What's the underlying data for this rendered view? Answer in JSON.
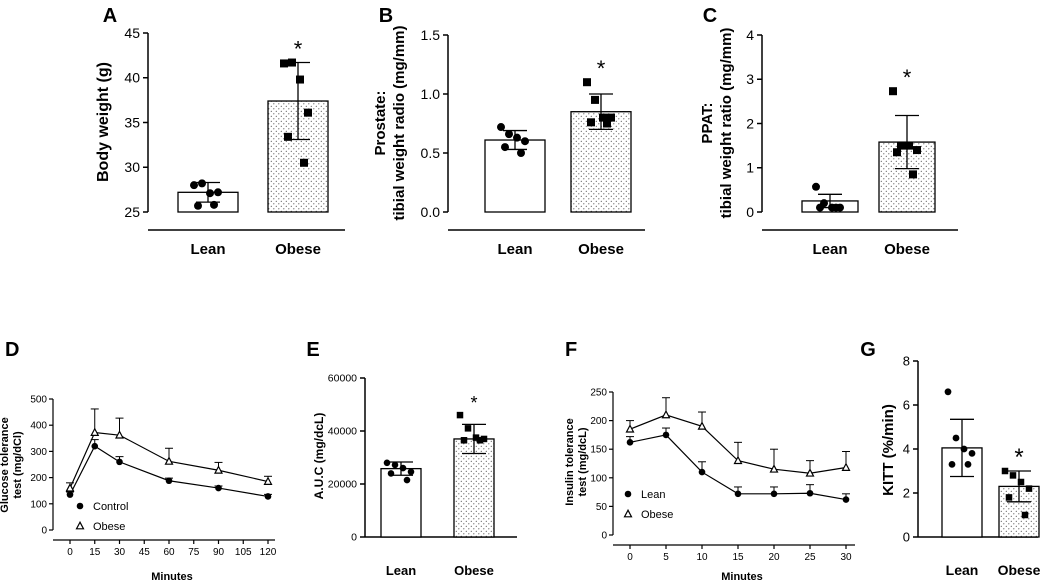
{
  "figure": {
    "colors": {
      "ink": "#000000",
      "bar_fill": "#ffffff",
      "stipple": "#555555"
    }
  },
  "chart_data": [
    {
      "panel": "A",
      "type": "bar",
      "title": "",
      "xlabel": "",
      "ylabel": "Body weight (g)",
      "ylim": [
        25,
        45
      ],
      "yticks": [
        25,
        30,
        35,
        40,
        45
      ],
      "ytick_labels": [
        "25",
        "30",
        "35",
        "40",
        "45"
      ],
      "categories": [
        "Lean",
        "Obese"
      ],
      "values": [
        27.2,
        37.4
      ],
      "errors": [
        1.1,
        4.3
      ],
      "points": [
        [
          28.0,
          28.2,
          27.1,
          27.2,
          25.7,
          25.8
        ],
        [
          41.6,
          41.7,
          39.8,
          36.1,
          33.4,
          30.5
        ]
      ],
      "significance": [
        "",
        "*"
      ]
    },
    {
      "panel": "B",
      "type": "bar",
      "title": "",
      "xlabel": "",
      "ylabel": "Prostate:",
      "ylabel2": "tibial weight radio (mg/mm)",
      "ylim": [
        0,
        1.5
      ],
      "yticks": [
        0,
        0.5,
        1.0,
        1.5
      ],
      "ytick_labels": [
        "0.0",
        "0.5",
        "1.0",
        "1.5"
      ],
      "categories": [
        "Lean",
        "Obese"
      ],
      "values": [
        0.61,
        0.85
      ],
      "errors": [
        0.08,
        0.15
      ],
      "points": [
        [
          0.72,
          0.66,
          0.63,
          0.6,
          0.55,
          0.5
        ],
        [
          1.1,
          0.95,
          0.8,
          0.8,
          0.76,
          0.75
        ]
      ],
      "significance": [
        "",
        "*"
      ]
    },
    {
      "panel": "C",
      "type": "bar",
      "title": "",
      "xlabel": "",
      "ylabel": "PPAT:",
      "ylabel2": "tibial weight ratio (mg/mm)",
      "ylim": [
        0,
        4
      ],
      "yticks": [
        0,
        1,
        2,
        3,
        4
      ],
      "ytick_labels": [
        "0",
        "1",
        "2",
        "3",
        "4"
      ],
      "categories": [
        "Lean",
        "Obese"
      ],
      "values": [
        0.25,
        1.58
      ],
      "errors": [
        0.15,
        0.6
      ],
      "points": [
        [
          0.57,
          0.2,
          0.1,
          0.1,
          0.1,
          0.1
        ],
        [
          2.73,
          1.5,
          1.5,
          1.4,
          1.35,
          0.85
        ]
      ],
      "significance": [
        "",
        "*"
      ]
    },
    {
      "panel": "D",
      "type": "line",
      "title": "",
      "xlabel": "Minutes",
      "ylabel": "Glucose tolerance",
      "ylabel2": "test (mg/dCl)",
      "xlim": [
        0,
        120
      ],
      "ylim": [
        0,
        500
      ],
      "xticks": [
        0,
        15,
        30,
        45,
        60,
        75,
        90,
        105,
        120
      ],
      "xtick_labels": [
        "0",
        "15",
        "30",
        "45",
        "60",
        "75",
        "90",
        "105",
        "120"
      ],
      "yticks": [
        0,
        100,
        200,
        300,
        400,
        500
      ],
      "ytick_labels": [
        "0",
        "100",
        "200",
        "300",
        "400",
        "500"
      ],
      "series": [
        {
          "name": "Control",
          "marker": "circle",
          "x": [
            0,
            15,
            30,
            60,
            90,
            120
          ],
          "y": [
            135,
            320,
            260,
            188,
            160,
            128
          ],
          "err": [
            10,
            25,
            20,
            10,
            8,
            8
          ]
        },
        {
          "name": "Obese",
          "marker": "triangle",
          "x": [
            0,
            15,
            30,
            60,
            90,
            120
          ],
          "y": [
            160,
            372,
            362,
            262,
            228,
            185
          ],
          "err": [
            20,
            90,
            65,
            50,
            30,
            20
          ]
        }
      ]
    },
    {
      "panel": "E",
      "type": "bar",
      "title": "",
      "xlabel": "",
      "ylabel": "A.U.C (mg/dcL)",
      "ylim": [
        0,
        60000
      ],
      "yticks": [
        0,
        20000,
        40000,
        60000
      ],
      "ytick_labels": [
        "0",
        "20000",
        "40000",
        "60000"
      ],
      "categories": [
        "Lean",
        "Obese"
      ],
      "values": [
        25800,
        37000
      ],
      "errors": [
        2500,
        5500
      ],
      "points": [
        [
          28000,
          27200,
          26000,
          24600,
          24000,
          21500
        ],
        [
          46000,
          41000,
          37500,
          37000,
          36500,
          36500
        ]
      ],
      "significance": [
        "",
        "*"
      ]
    },
    {
      "panel": "F",
      "type": "line",
      "title": "",
      "xlabel": "Minutes",
      "ylabel": "Insulin tolerance",
      "ylabel2": "test (mg/dcL)",
      "xlim": [
        0,
        30
      ],
      "ylim": [
        0,
        250
      ],
      "xticks": [
        0,
        5,
        10,
        15,
        20,
        25,
        30
      ],
      "xtick_labels": [
        "0",
        "5",
        "10",
        "15",
        "20",
        "25",
        "30"
      ],
      "yticks": [
        0,
        50,
        100,
        150,
        200,
        250
      ],
      "ytick_labels": [
        "0",
        "50",
        "100",
        "150",
        "200",
        "250"
      ],
      "series": [
        {
          "name": "Lean",
          "marker": "circle",
          "x": [
            0,
            5,
            10,
            15,
            20,
            25,
            30
          ],
          "y": [
            162,
            175,
            110,
            72,
            72,
            73,
            62
          ],
          "err": [
            10,
            12,
            18,
            12,
            12,
            15,
            10
          ]
        },
        {
          "name": "Obese",
          "marker": "triangle",
          "x": [
            0,
            5,
            10,
            15,
            20,
            25,
            30
          ],
          "y": [
            185,
            210,
            190,
            130,
            115,
            108,
            118
          ],
          "err": [
            15,
            30,
            25,
            32,
            35,
            22,
            28
          ]
        }
      ]
    },
    {
      "panel": "G",
      "type": "bar",
      "title": "",
      "xlabel": "",
      "ylabel": "KITT (%/min)",
      "ylim": [
        0,
        8
      ],
      "yticks": [
        0,
        2,
        4,
        6,
        8
      ],
      "ytick_labels": [
        "0",
        "2",
        "4",
        "6",
        "8"
      ],
      "categories": [
        "Lean",
        "Obese"
      ],
      "values": [
        4.05,
        2.3
      ],
      "errors": [
        1.3,
        0.7
      ],
      "points": [
        [
          6.6,
          4.5,
          4.0,
          3.8,
          3.3,
          3.3
        ],
        [
          3.0,
          2.8,
          2.5,
          2.2,
          1.8,
          1.0
        ]
      ],
      "significance": [
        "",
        "*"
      ]
    }
  ]
}
